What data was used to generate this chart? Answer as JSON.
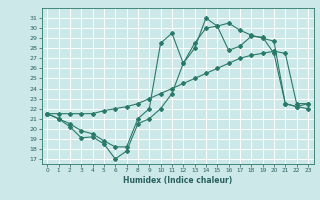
{
  "xlabel": "Humidex (Indice chaleur)",
  "bg_color": "#cce8e8",
  "grid_color": "#ffffff",
  "line_color": "#2a7a6a",
  "xlim": [
    -0.5,
    23.5
  ],
  "ylim": [
    16.5,
    32.0
  ],
  "xticks": [
    0,
    1,
    2,
    3,
    4,
    5,
    6,
    7,
    8,
    9,
    10,
    11,
    12,
    13,
    14,
    15,
    16,
    17,
    18,
    19,
    20,
    21,
    22,
    23
  ],
  "yticks": [
    17,
    18,
    19,
    20,
    21,
    22,
    23,
    24,
    25,
    26,
    27,
    28,
    29,
    30,
    31
  ],
  "line1_x": [
    0,
    1,
    2,
    3,
    4,
    5,
    6,
    7,
    8,
    9,
    10,
    11,
    12,
    13,
    14,
    15,
    16,
    17,
    18,
    19,
    20,
    21,
    22,
    23
  ],
  "line1_y": [
    21.5,
    21.0,
    20.2,
    19.1,
    19.2,
    18.5,
    17.0,
    17.8,
    20.5,
    21.0,
    22.0,
    23.5,
    26.5,
    28.5,
    30.0,
    30.2,
    30.5,
    29.8,
    29.3,
    29.0,
    28.7,
    22.5,
    22.2,
    22.5
  ],
  "line2_x": [
    0,
    1,
    2,
    3,
    4,
    5,
    6,
    7,
    8,
    9,
    10,
    11,
    12,
    13,
    14,
    15,
    16,
    17,
    18,
    19,
    20,
    21,
    22,
    23
  ],
  "line2_y": [
    21.5,
    21.5,
    21.5,
    21.5,
    21.5,
    21.8,
    22.0,
    22.2,
    22.5,
    23.0,
    23.5,
    24.0,
    24.5,
    25.0,
    25.5,
    26.0,
    26.5,
    27.0,
    27.3,
    27.5,
    27.7,
    27.5,
    22.5,
    22.5
  ],
  "line3_x": [
    0,
    1,
    2,
    3,
    4,
    5,
    6,
    7,
    8,
    9,
    10,
    11,
    12,
    13,
    14,
    15,
    16,
    17,
    18,
    19,
    20,
    21,
    22,
    23
  ],
  "line3_y": [
    21.5,
    21.0,
    20.5,
    19.8,
    19.5,
    18.8,
    18.2,
    18.2,
    21.0,
    22.0,
    28.5,
    29.5,
    26.5,
    28.0,
    31.0,
    30.2,
    27.8,
    28.2,
    29.2,
    29.1,
    27.5,
    22.5,
    22.2,
    22.0
  ]
}
